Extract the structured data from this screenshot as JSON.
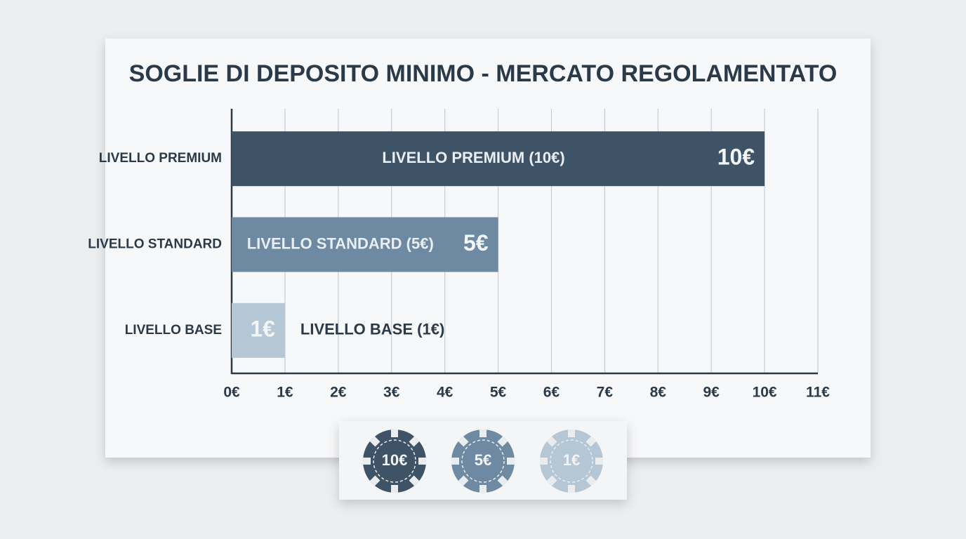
{
  "chart_data": {
    "type": "bar",
    "orientation": "horizontal",
    "title": "SOGLIE DI DEPOSITO MINIMO - MERCATO REGOLAMENTATO",
    "categories": [
      "LIVELLO PREMIUM",
      "LIVELLO STANDARD",
      "LIVELLO BASE"
    ],
    "values": [
      10,
      5,
      1
    ],
    "value_labels": [
      "10€",
      "5€",
      "1€"
    ],
    "bar_labels": [
      "LIVELLO PREMIUM (10€)",
      "LIVELLO STANDARD (5€)",
      "LIVELLO BASE (1€)"
    ],
    "colors": [
      "#3f5367",
      "#6e8aa2",
      "#b5c6d4"
    ],
    "xlim": [
      0,
      11
    ],
    "xticks": [
      {
        "value": 0,
        "label": "0€"
      },
      {
        "value": 1,
        "label": "1€"
      },
      {
        "value": 2,
        "label": "2€"
      },
      {
        "value": 3,
        "label": "3€"
      },
      {
        "value": 4,
        "label": "4€"
      },
      {
        "value": 5,
        "label": "5€"
      },
      {
        "value": 6,
        "label": "6€"
      },
      {
        "value": 7,
        "label": "7€"
      },
      {
        "value": 8,
        "label": "8€"
      },
      {
        "value": 9,
        "label": "9€"
      },
      {
        "value": 10,
        "label": "10€"
      },
      {
        "value": 11,
        "label": "11€"
      }
    ],
    "grid": true
  }
}
